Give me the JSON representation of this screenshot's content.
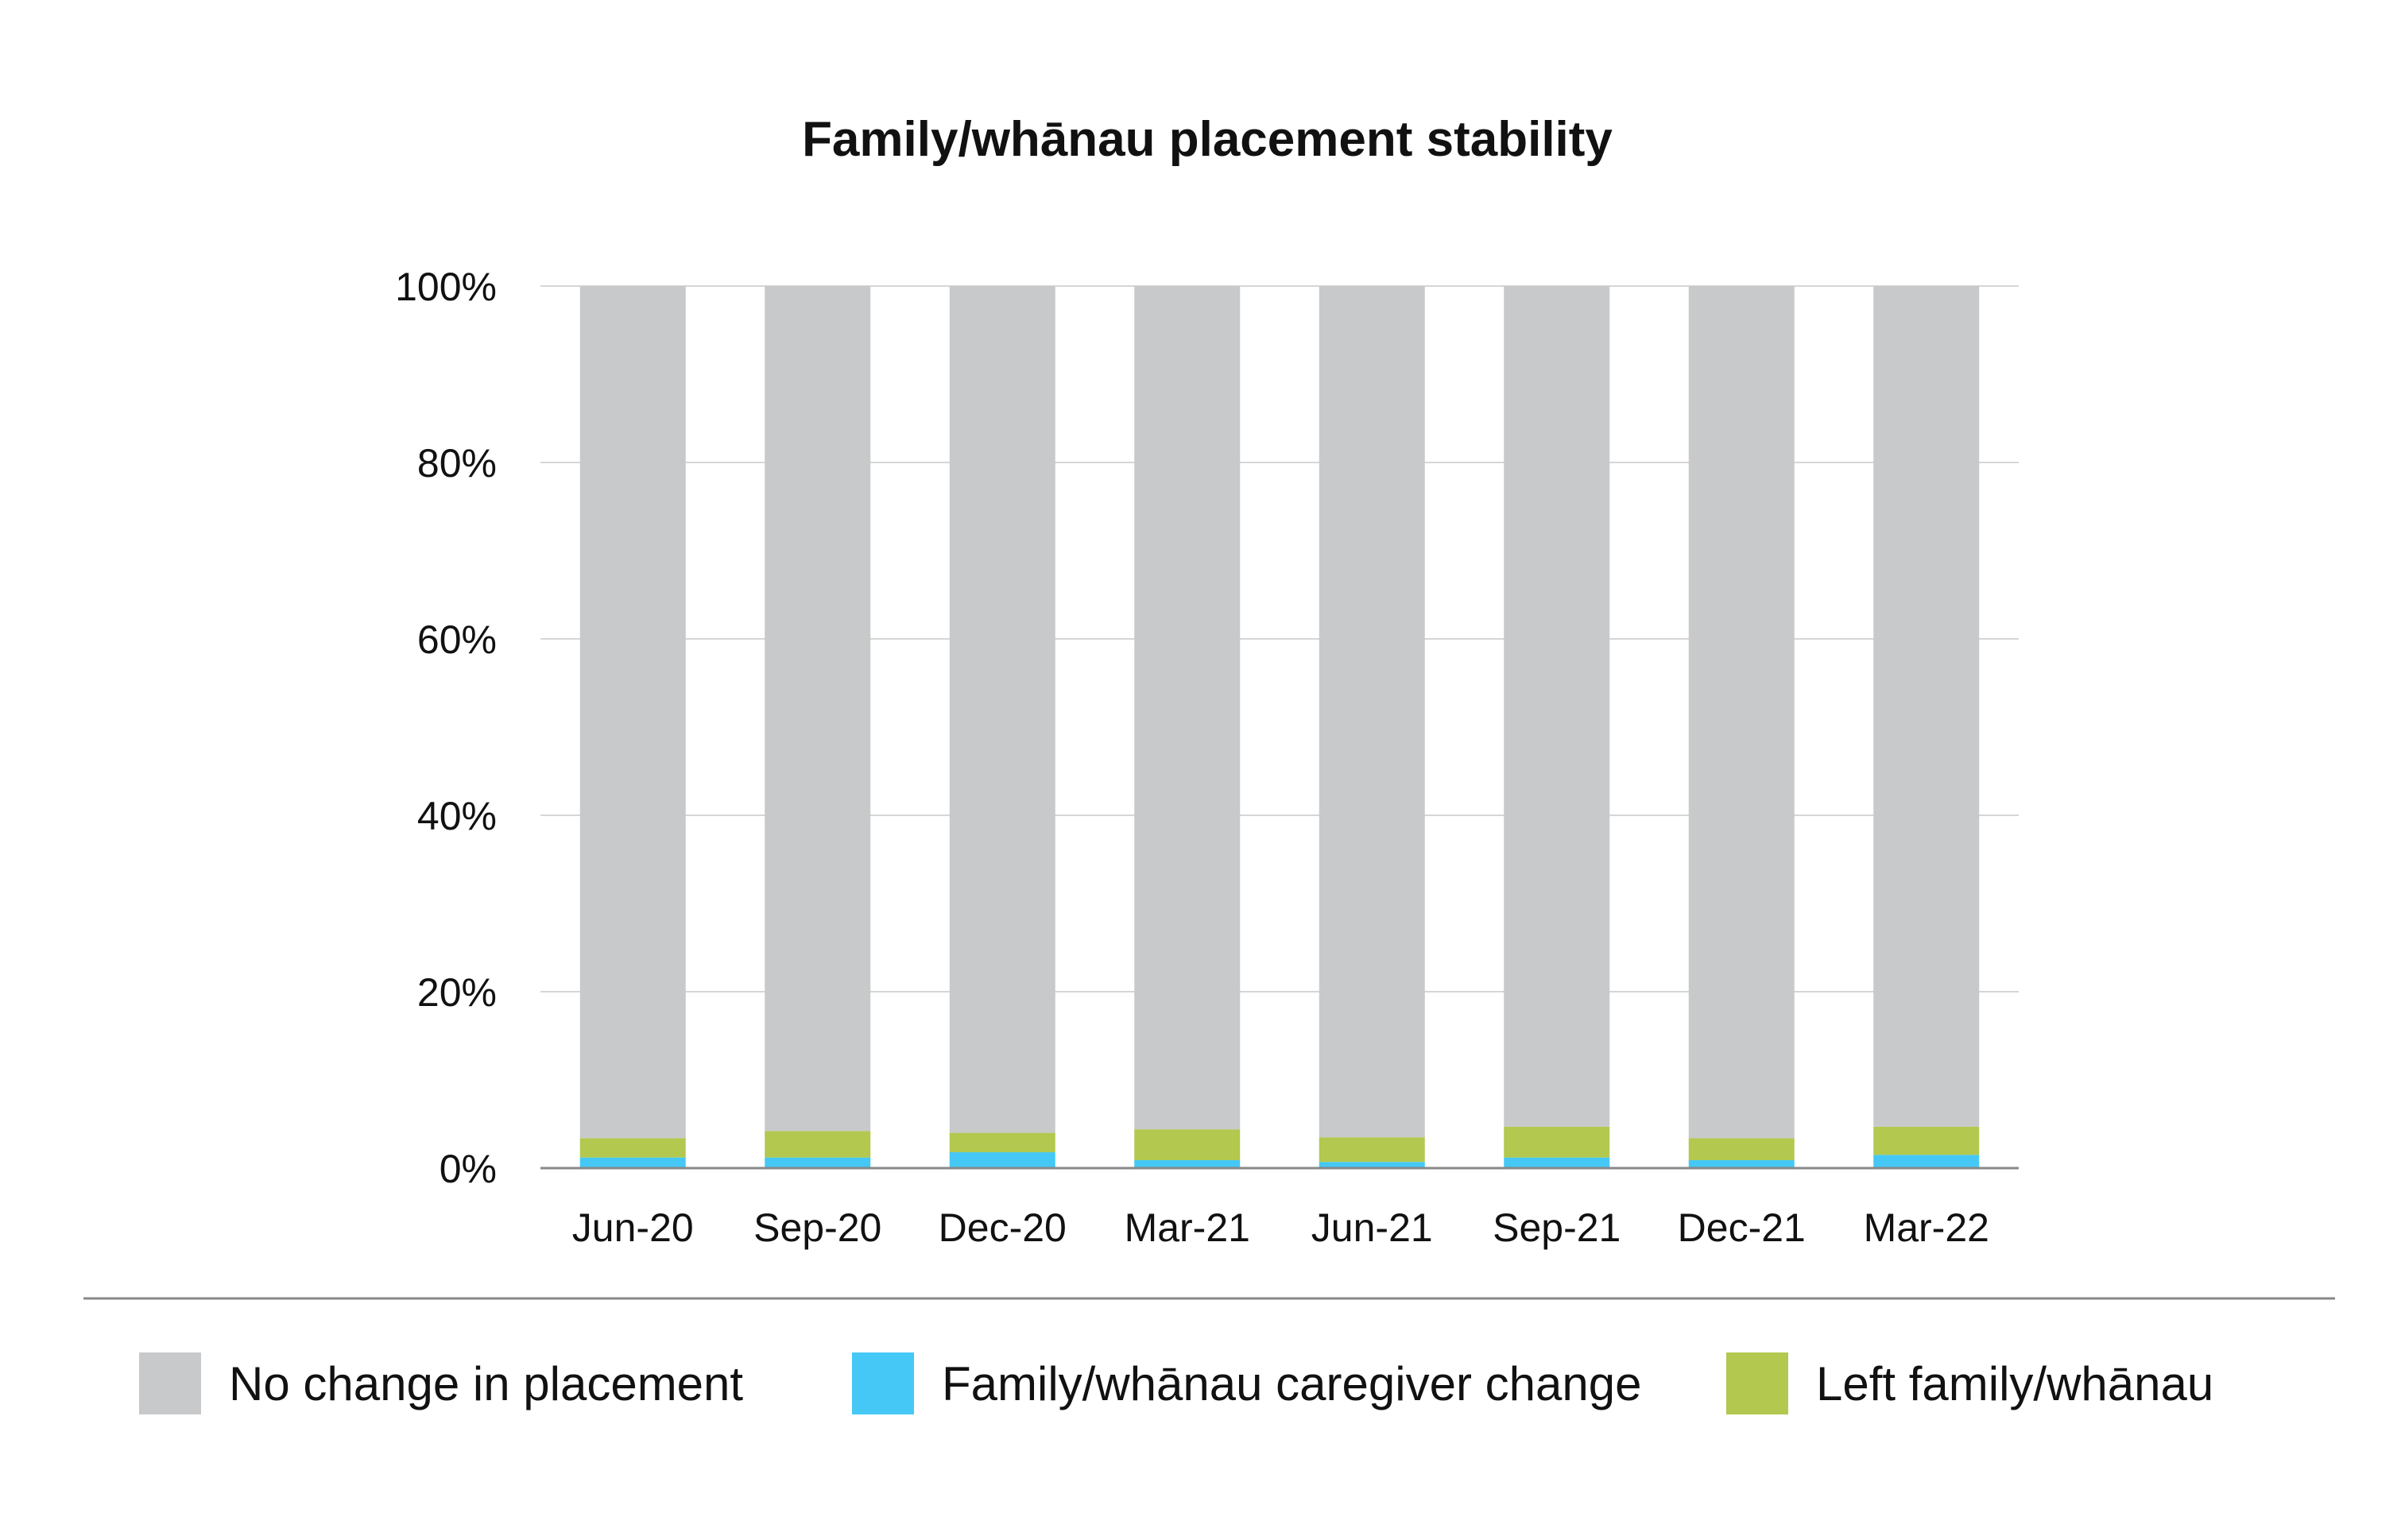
{
  "chart_data": {
    "type": "bar",
    "stacked": true,
    "title": "Family/whānau placement stability",
    "xlabel": "",
    "ylabel": "",
    "categories": [
      "Jun-20",
      "Sep-20",
      "Dec-20",
      "Mar-21",
      "Jun-21",
      "Sep-21",
      "Dec-21",
      "Mar-22"
    ],
    "yticks": [
      "0%",
      "20%",
      "40%",
      "60%",
      "80%",
      "100%"
    ],
    "ylim": [
      0,
      100
    ],
    "grid": true,
    "legend_position": "bottom",
    "series": [
      {
        "name": "Family/whānau caregiver change",
        "color": "#45c8f5",
        "values": [
          1.2,
          1.2,
          1.8,
          0.9,
          0.7,
          1.2,
          0.9,
          1.5
        ]
      },
      {
        "name": "Left family/whānau",
        "color": "#b2c84f",
        "values": [
          2.2,
          3.0,
          2.2,
          3.5,
          2.8,
          3.5,
          2.5,
          3.2
        ]
      },
      {
        "name": "No change in placement",
        "color": "#c8c9ca",
        "values": [
          96.6,
          95.8,
          96.0,
          95.6,
          96.5,
          95.3,
          96.6,
          95.3
        ]
      }
    ],
    "legend_order": [
      "No change in placement",
      "Family/whānau caregiver change",
      "Left family/whānau"
    ]
  }
}
